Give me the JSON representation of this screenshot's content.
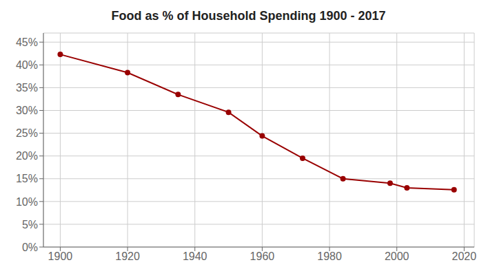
{
  "chart_data": {
    "type": "line",
    "title": "Food as % of Household Spending 1900 - 2017",
    "x": [
      1900,
      1920,
      1935,
      1950,
      1960,
      1972,
      1984,
      1998,
      2003,
      2017
    ],
    "values": [
      0.423,
      0.383,
      0.335,
      0.296,
      0.244,
      0.195,
      0.15,
      0.14,
      0.13,
      0.126
    ],
    "color": "#990000",
    "marker": "circle",
    "xlim": [
      1895,
      2023
    ],
    "ylim": [
      0,
      0.47
    ],
    "xticks": [
      1900,
      1920,
      1940,
      1960,
      1980,
      2000,
      2020
    ],
    "yticks": [
      {
        "value": 0,
        "label": "0%"
      },
      {
        "value": 0.05,
        "label": "5%"
      },
      {
        "value": 0.1,
        "label": "10%"
      },
      {
        "value": 0.15,
        "label": "15%"
      },
      {
        "value": 0.2,
        "label": "20%"
      },
      {
        "value": 0.25,
        "label": "25%"
      },
      {
        "value": 0.3,
        "label": "30%"
      },
      {
        "value": 0.35,
        "label": "35%"
      },
      {
        "value": 0.4,
        "label": "40%"
      },
      {
        "value": 0.45,
        "label": "45%"
      }
    ],
    "grid": true
  }
}
